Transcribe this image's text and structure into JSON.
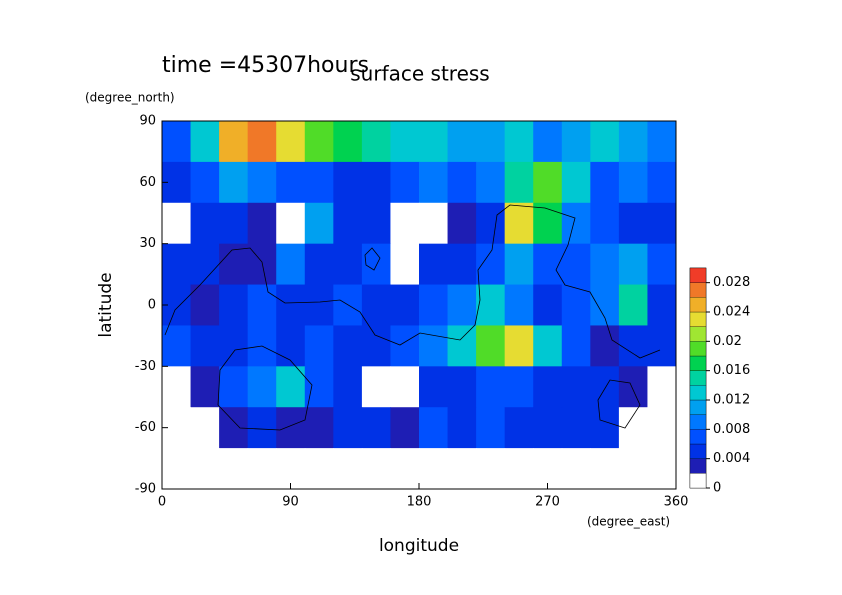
{
  "chart_data": {
    "type": "contour",
    "title": "surface stress",
    "subtitle": "time =45307hours",
    "x_label": "longitude",
    "x_units": "(degree_east)",
    "y_label": "latitude",
    "y_units": "(degree_north)",
    "x": [
      10,
      30,
      50,
      70,
      90,
      110,
      130,
      150,
      170,
      190,
      210,
      230,
      250,
      270,
      290,
      310,
      330,
      350
    ],
    "y": [
      80,
      60,
      40,
      20,
      0,
      -20,
      -40,
      -60,
      -80
    ],
    "z": [
      [
        0.006,
        0.012,
        0.024,
        0.026,
        0.022,
        0.018,
        0.016,
        0.014,
        0.012,
        0.012,
        0.01,
        0.01,
        0.012,
        0.008,
        0.01,
        0.012,
        0.01,
        0.008
      ],
      [
        0.004,
        0.006,
        0.01,
        0.008,
        0.006,
        0.006,
        0.004,
        0.004,
        0.006,
        0.008,
        0.006,
        0.008,
        0.014,
        0.018,
        0.012,
        0.006,
        0.008,
        0.006
      ],
      [
        0,
        0.004,
        0.004,
        0.002,
        0,
        0.01,
        0.004,
        0.004,
        0,
        0,
        0.002,
        0.004,
        0.022,
        0.016,
        0.008,
        0.006,
        0.004,
        0.004
      ],
      [
        0.004,
        0.004,
        0.002,
        0.002,
        0.008,
        0.004,
        0.004,
        0.006,
        0,
        0.004,
        0.004,
        0.006,
        0.01,
        0.006,
        0.006,
        0.008,
        0.01,
        0.006
      ],
      [
        0.004,
        0.002,
        0.004,
        0.006,
        0.004,
        0.004,
        0.006,
        0.004,
        0.004,
        0.006,
        0.008,
        0.012,
        0.008,
        0.004,
        0.006,
        0.008,
        0.014,
        0.004
      ],
      [
        0.006,
        0.004,
        0.004,
        0.006,
        0.004,
        0.006,
        0.004,
        0.004,
        0.006,
        0.008,
        0.012,
        0.018,
        0.022,
        0.012,
        0.006,
        0.002,
        0.004,
        0.004
      ],
      [
        0,
        0.002,
        0.006,
        0.008,
        0.012,
        0.006,
        0.004,
        0,
        0,
        0.004,
        0.004,
        0.006,
        0.006,
        0.004,
        0.004,
        0.004,
        0.002,
        0
      ],
      [
        0,
        0,
        0.002,
        0.004,
        0.002,
        0.002,
        0.004,
        0.004,
        0.002,
        0.006,
        0.004,
        0.006,
        0.004,
        0.004,
        0.004,
        0.004,
        0,
        0
      ],
      [
        0,
        0,
        0,
        0,
        0,
        0,
        0,
        0,
        0,
        0,
        0,
        0,
        0,
        0,
        0,
        0,
        0,
        0
      ]
    ],
    "xlim": [
      0,
      360
    ],
    "ylim": [
      -90,
      90
    ],
    "xticks": [
      0,
      90,
      180,
      270,
      360
    ],
    "yticks": [
      -90,
      -60,
      -30,
      0,
      30,
      60,
      90
    ],
    "levels": [
      0,
      0.002,
      0.004,
      0.006,
      0.008,
      0.01,
      0.012,
      0.014,
      0.016,
      0.018,
      0.02,
      0.022,
      0.024,
      0.026,
      0.028,
      0.03
    ],
    "colors": [
      "#ffffff",
      "#1e1eb4",
      "#0032e6",
      "#0050ff",
      "#0078ff",
      "#00a0f0",
      "#00c8d2",
      "#00d2a0",
      "#00d250",
      "#50dc28",
      "#a0e632",
      "#e6dc32",
      "#f0af28",
      "#f07828",
      "#f03c28"
    ],
    "colorbar_ticks": [
      0,
      0.004,
      0.008,
      0.012,
      0.016,
      0.02,
      0.024,
      0.028
    ]
  }
}
